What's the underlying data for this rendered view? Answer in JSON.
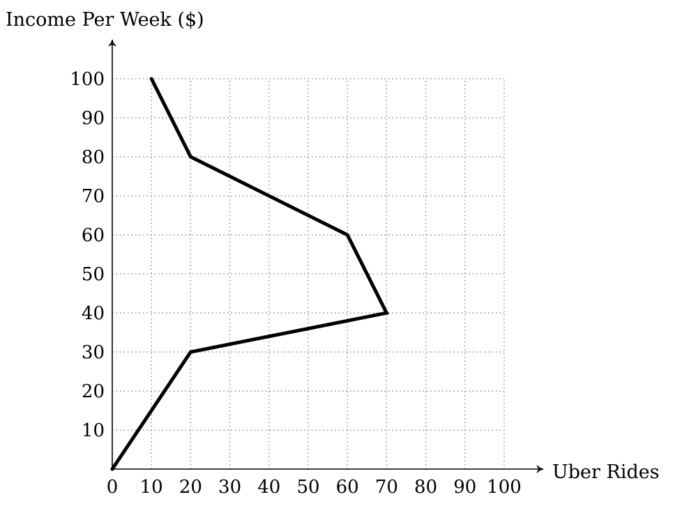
{
  "chart_data": {
    "type": "line",
    "title": "",
    "xlabel": "Uber Rides",
    "ylabel": "Income Per Week ($)",
    "xlim": [
      0,
      100
    ],
    "ylim": [
      0,
      100
    ],
    "x_ticks": [
      0,
      10,
      20,
      30,
      40,
      50,
      60,
      70,
      80,
      90,
      100
    ],
    "y_ticks": [
      10,
      20,
      30,
      40,
      50,
      60,
      70,
      80,
      90,
      100
    ],
    "grid": true,
    "legend": "none",
    "series": [
      {
        "x": [
          0,
          20,
          70,
          60,
          20,
          10
        ],
        "y": [
          0,
          30,
          40,
          60,
          80,
          100
        ],
        "color": "#000000"
      }
    ]
  }
}
